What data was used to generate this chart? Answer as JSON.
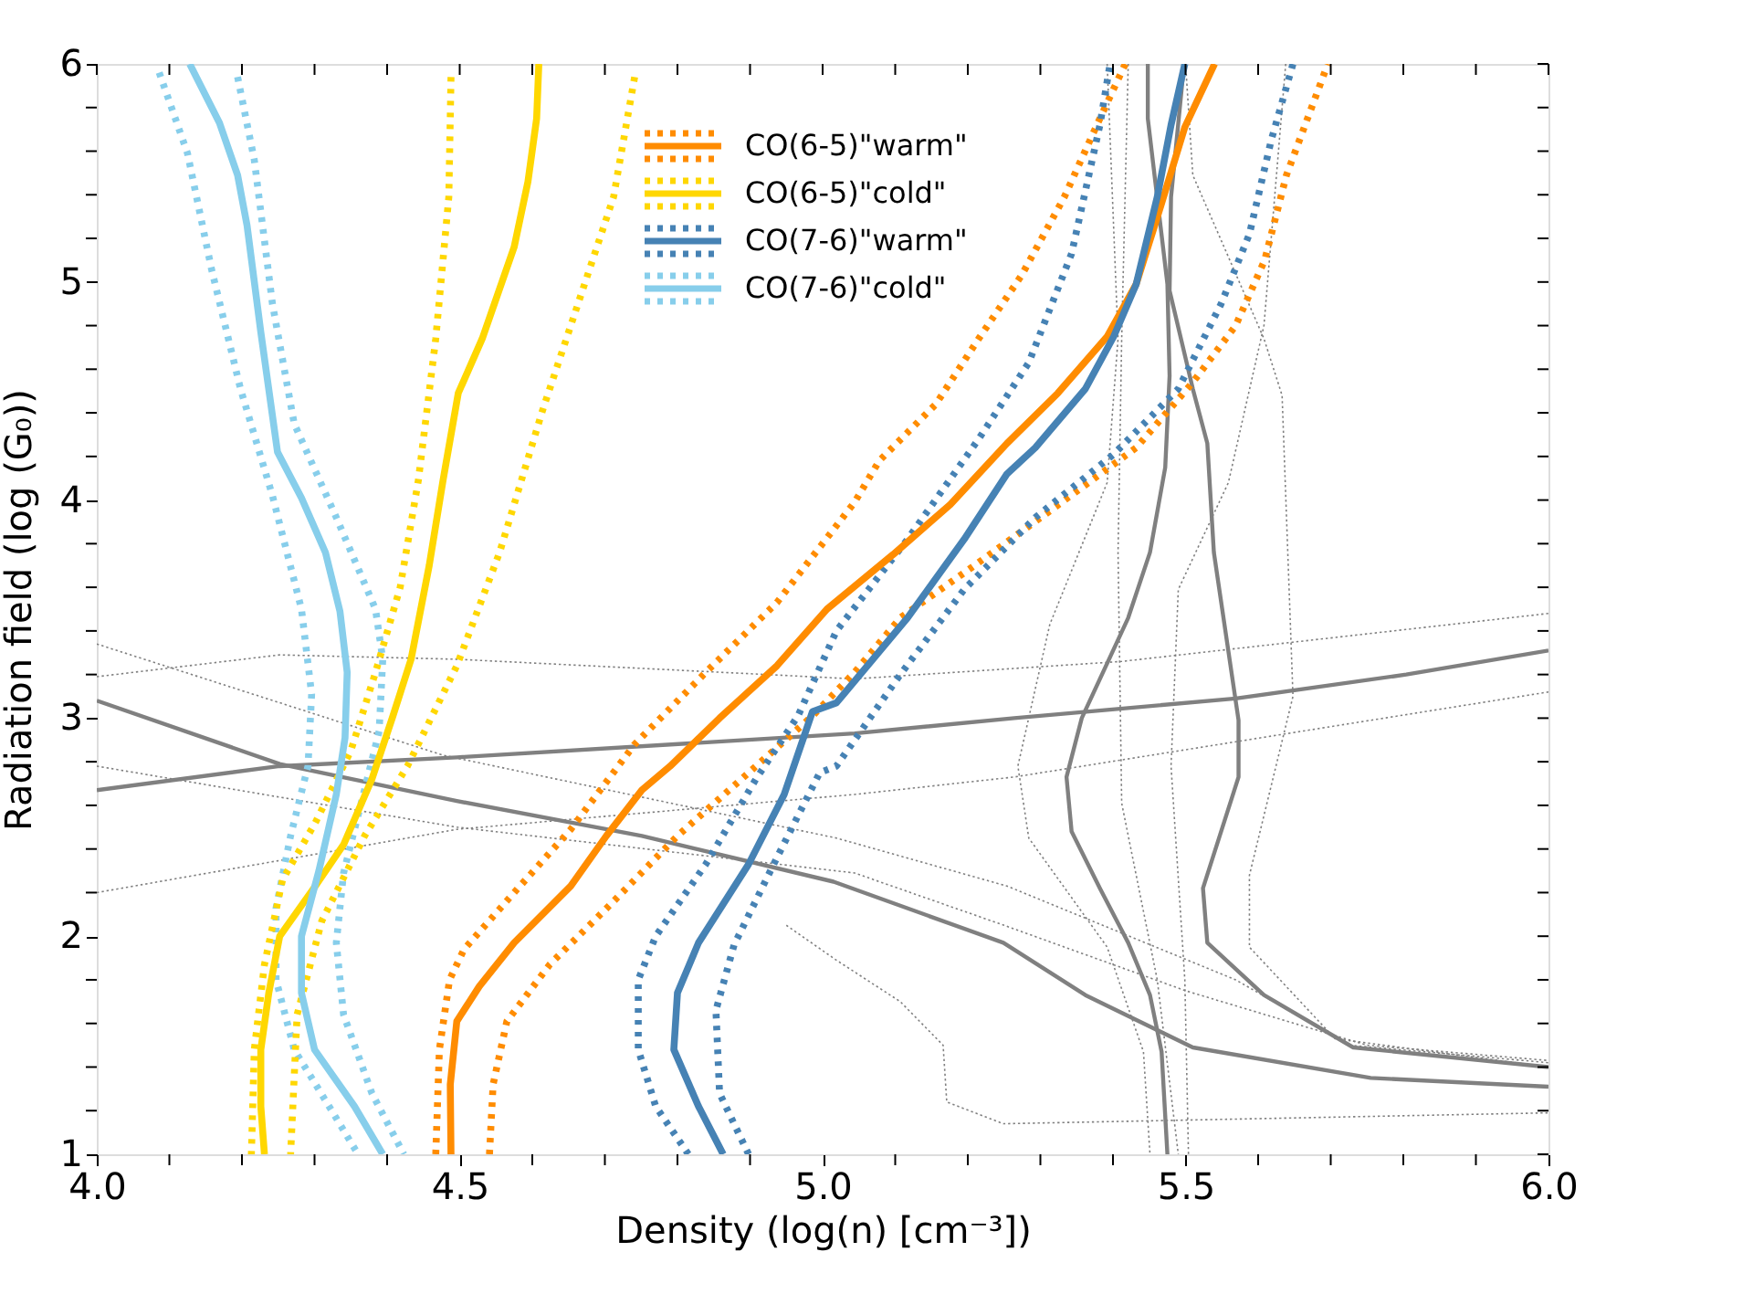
{
  "chart_data": {
    "type": "line",
    "xlabel": "Density (log(n) [cm⁻³])",
    "ylabel": "Radiation field (log (G₀))",
    "xlim": [
      4.0,
      6.0
    ],
    "ylim": [
      1,
      6
    ],
    "xticks": [
      {
        "value": 4.0,
        "label": "4.0"
      },
      {
        "value": 4.1,
        "label": null
      },
      {
        "value": 4.2,
        "label": null
      },
      {
        "value": 4.3,
        "label": null
      },
      {
        "value": 4.4,
        "label": null
      },
      {
        "value": 4.5,
        "label": "4.5"
      },
      {
        "value": 4.6,
        "label": null
      },
      {
        "value": 4.7,
        "label": null
      },
      {
        "value": 4.8,
        "label": null
      },
      {
        "value": 4.9,
        "label": null
      },
      {
        "value": 5.0,
        "label": "5.0"
      },
      {
        "value": 5.1,
        "label": null
      },
      {
        "value": 5.2,
        "label": null
      },
      {
        "value": 5.3,
        "label": null
      },
      {
        "value": 5.4,
        "label": null
      },
      {
        "value": 5.5,
        "label": "5.5"
      },
      {
        "value": 5.6,
        "label": null
      },
      {
        "value": 5.7,
        "label": null
      },
      {
        "value": 5.8,
        "label": null
      },
      {
        "value": 5.9,
        "label": null
      },
      {
        "value": 6.0,
        "label": "6.0"
      }
    ],
    "yticks": [
      1,
      {
        "value": 1.2,
        "label": null
      },
      {
        "value": 1.4,
        "label": null
      },
      {
        "value": 1.6,
        "label": null
      },
      {
        "value": 1.8,
        "label": null
      },
      2,
      {
        "value": 2.2,
        "label": null
      },
      {
        "value": 2.4,
        "label": null
      },
      {
        "value": 2.6,
        "label": null
      },
      {
        "value": 2.8,
        "label": null
      },
      3,
      {
        "value": 3.2,
        "label": null
      },
      {
        "value": 3.4,
        "label": null
      },
      {
        "value": 3.6,
        "label": null
      },
      {
        "value": 3.8,
        "label": null
      },
      4,
      {
        "value": 4.2,
        "label": null
      },
      {
        "value": 4.4,
        "label": null
      },
      {
        "value": 4.6,
        "label": null
      },
      {
        "value": 4.8,
        "label": null
      },
      5,
      {
        "value": 5.2,
        "label": null
      },
      {
        "value": 5.4,
        "label": null
      },
      {
        "value": 5.6,
        "label": null
      },
      {
        "value": 5.8,
        "label": null
      },
      6
    ],
    "grid": false,
    "legend": "top",
    "marker": "none",
    "series": [
      {
        "color": "#808080",
        "line_style": "dotted",
        "x": [
          4.0,
          4.477,
          5.019,
          5.254,
          5.569,
          5.726,
          6.0
        ],
        "values": [
          3.34,
          2.83,
          2.45,
          2.23,
          1.8,
          1.5,
          1.42
        ]
      },
      {
        "color": "#808080",
        "line_style": "dotted",
        "x": [
          4.0,
          4.252,
          4.496,
          5.044,
          5.412,
          6.0
        ],
        "values": [
          3.19,
          3.29,
          3.27,
          3.18,
          3.26,
          3.48
        ]
      },
      {
        "color": "#808080",
        "line_style": "dotted",
        "x": [
          4.0,
          4.496,
          5.044,
          5.25,
          5.5,
          5.75,
          6.0
        ],
        "values": [
          2.78,
          2.5,
          2.29,
          2.05,
          1.75,
          1.5,
          1.43
        ]
      },
      {
        "color": "#808080",
        "line_style": "dotted",
        "x": [
          4.0,
          4.496,
          5.044,
          5.264,
          6.0
        ],
        "values": [
          2.2,
          2.49,
          2.65,
          2.73,
          3.12
        ]
      },
      {
        "color": "#808080",
        "line_style": "dotted",
        "x": [
          4.95,
          5.019,
          5.107,
          5.166,
          5.171,
          5.249,
          6.0
        ],
        "values": [
          2.05,
          1.89,
          1.7,
          1.5,
          1.24,
          1.14,
          1.19
        ]
      },
      {
        "color": "#808080",
        "line_style": "dotted",
        "x": [
          5.392,
          5.407,
          5.392,
          5.313,
          5.269,
          5.284,
          5.392,
          5.442,
          5.451
        ],
        "values": [
          6.0,
          4.74,
          4.08,
          3.43,
          2.78,
          2.45,
          1.95,
          1.47,
          1.0
        ]
      },
      {
        "color": "#808080",
        "line_style": "dotted",
        "x": [
          5.421,
          5.412,
          5.407,
          5.412,
          5.461,
          5.49
        ],
        "values": [
          6.0,
          4.74,
          3.76,
          2.61,
          1.8,
          1.0
        ]
      },
      {
        "color": "#808080",
        "line_style": "dotted",
        "x": [
          5.5,
          5.51,
          5.608,
          5.633,
          5.648,
          5.588,
          5.588,
          5.706,
          6.0
        ],
        "values": [
          6.0,
          5.49,
          4.74,
          4.48,
          3.1,
          2.28,
          1.95,
          1.53,
          1.4
        ]
      },
      {
        "color": "#808080",
        "line_style": "dotted",
        "x": [
          5.638,
          5.608,
          5.559,
          5.49,
          5.48,
          5.499,
          5.504
        ],
        "values": [
          6.0,
          4.8,
          4.08,
          3.59,
          2.78,
          1.8,
          1.0
        ]
      },
      {
        "color": "#808080",
        "line_style": "solid",
        "x": [
          4.0,
          4.252,
          4.496,
          5.044,
          5.264,
          5.569,
          5.804,
          6.0
        ],
        "values": [
          2.67,
          2.78,
          2.82,
          2.93,
          3.0,
          3.09,
          3.2,
          3.31
        ]
      },
      {
        "color": "#808080",
        "line_style": "solid",
        "x": [
          4.0,
          4.252,
          4.496,
          4.751,
          5.015,
          5.249,
          5.362,
          5.51,
          5.755,
          6.0
        ],
        "values": [
          3.08,
          2.79,
          2.62,
          2.46,
          2.25,
          1.97,
          1.73,
          1.49,
          1.35,
          1.31
        ]
      },
      {
        "color": "#808080",
        "line_style": "solid",
        "x": [
          5.448,
          5.448,
          5.475,
          5.478,
          5.472,
          5.451,
          5.421,
          5.357,
          5.336,
          5.343,
          5.382,
          5.421,
          5.451,
          5.467,
          5.475
        ],
        "values": [
          6.0,
          5.75,
          4.99,
          4.57,
          4.15,
          3.76,
          3.46,
          3.0,
          2.73,
          2.48,
          2.22,
          1.97,
          1.73,
          1.47,
          1.0
        ]
      },
      {
        "color": "#808080",
        "line_style": "solid",
        "x": [
          5.498,
          5.48,
          5.478,
          5.51,
          5.53,
          5.539,
          5.573,
          5.573,
          5.524,
          5.53,
          5.608,
          5.731,
          6.0
        ],
        "values": [
          6.0,
          5.39,
          4.96,
          4.51,
          4.26,
          3.76,
          2.99,
          2.73,
          2.22,
          1.97,
          1.73,
          1.49,
          1.4
        ]
      },
      {
        "color": "#87ceeb",
        "line_style": "dotted",
        "x": [
          4.086,
          4.125,
          4.158,
          4.198,
          4.242,
          4.282,
          4.296,
          4.291,
          4.267,
          4.247,
          4.247,
          4.272,
          4.32,
          4.36
        ],
        "values": [
          5.96,
          5.59,
          5.06,
          4.51,
          4.02,
          3.5,
          3.11,
          2.78,
          2.46,
          2.13,
          1.8,
          1.48,
          1.22,
          1.0
        ]
      },
      {
        "color": "#87ceeb",
        "line_style": "dotted",
        "x": [
          4.194,
          4.217,
          4.242,
          4.272,
          4.33,
          4.384,
          4.394,
          4.389,
          4.365,
          4.34,
          4.33,
          4.34,
          4.379,
          4.423
        ],
        "values": [
          5.94,
          5.56,
          4.9,
          4.35,
          3.92,
          3.5,
          3.27,
          2.94,
          2.62,
          2.29,
          1.97,
          1.64,
          1.28,
          1.0
        ]
      },
      {
        "color": "#ffd700",
        "line_style": "dotted",
        "x": [
          4.488,
          4.485,
          4.467,
          4.443,
          4.418,
          4.384,
          4.35,
          4.301,
          4.256,
          4.231,
          4.217,
          4.213
        ],
        "values": [
          5.94,
          5.39,
          4.74,
          4.09,
          3.6,
          3.21,
          2.85,
          2.52,
          2.26,
          1.87,
          1.48,
          1.0
        ]
      },
      {
        "color": "#ffd700",
        "line_style": "dotted",
        "x": [
          4.741,
          4.712,
          4.663,
          4.614,
          4.555,
          4.496,
          4.428,
          4.369,
          4.31,
          4.276,
          4.267
        ],
        "values": [
          5.94,
          5.39,
          4.9,
          4.41,
          3.76,
          3.24,
          2.78,
          2.46,
          2.07,
          1.64,
          1.0
        ]
      },
      {
        "color": "#ff8c00",
        "line_style": "dotted",
        "x": [
          4.467,
          4.472,
          4.486,
          4.506,
          4.575,
          4.653,
          4.741,
          4.839,
          4.937,
          5.044,
          5.078,
          5.156,
          5.215,
          5.274,
          5.333,
          5.382,
          5.417
        ],
        "values": [
          1.0,
          1.48,
          1.8,
          1.94,
          2.2,
          2.49,
          2.88,
          3.21,
          3.53,
          3.99,
          4.18,
          4.44,
          4.74,
          5.03,
          5.39,
          5.75,
          6.0
        ]
      },
      {
        "color": "#ff8c00",
        "line_style": "dotted",
        "x": [
          4.541,
          4.546,
          4.565,
          4.624,
          4.712,
          4.8,
          4.888,
          4.986,
          5.044,
          5.107,
          5.205,
          5.313,
          5.432,
          5.51,
          5.569,
          5.609,
          5.639,
          5.696
        ],
        "values": [
          1.0,
          1.32,
          1.61,
          1.87,
          2.16,
          2.46,
          2.72,
          3.01,
          3.21,
          3.46,
          3.69,
          3.95,
          4.24,
          4.54,
          4.8,
          5.1,
          5.49,
          6.0
        ]
      },
      {
        "color": "#4682b4",
        "line_style": "dotted",
        "x": [
          4.815,
          4.77,
          4.746,
          4.746,
          4.77,
          4.839,
          4.908,
          4.966,
          5.019,
          5.117,
          5.215,
          5.284,
          5.343,
          5.382,
          5.396
        ],
        "values": [
          1.0,
          1.22,
          1.48,
          1.8,
          2.0,
          2.33,
          2.72,
          3.01,
          3.4,
          3.82,
          4.28,
          4.63,
          5.13,
          5.72,
          6.0
        ]
      },
      {
        "color": "#4682b4",
        "line_style": "dotted",
        "x": [
          4.898,
          4.858,
          4.853,
          4.878,
          4.937,
          4.996,
          5.019,
          5.107,
          5.195,
          5.293,
          5.401,
          5.49,
          5.549,
          5.588,
          5.618,
          5.648
        ],
        "values": [
          1.0,
          1.28,
          1.66,
          1.96,
          2.36,
          2.75,
          2.78,
          3.2,
          3.59,
          3.92,
          4.21,
          4.51,
          4.9,
          5.22,
          5.65,
          6.0
        ]
      },
      {
        "name": "CO(6-5)\"warm\"",
        "color": "#ff8c00",
        "line_style": "solid",
        "x": [
          4.488,
          4.487,
          4.496,
          4.527,
          4.575,
          4.653,
          4.702,
          4.751,
          4.79,
          4.858,
          4.937,
          5.006,
          5.097,
          5.176,
          5.254,
          5.324,
          5.392,
          5.432,
          5.466,
          5.499,
          5.54
        ],
        "values": [
          1.0,
          1.32,
          1.61,
          1.77,
          1.97,
          2.23,
          2.46,
          2.67,
          2.78,
          3.0,
          3.24,
          3.5,
          3.75,
          3.98,
          4.26,
          4.49,
          4.75,
          4.99,
          5.35,
          5.71,
          6.0
        ]
      },
      {
        "name": "CO(6-5)\"cold\"",
        "color": "#ffd700",
        "line_style": "solid",
        "x": [
          4.609,
          4.606,
          4.594,
          4.575,
          4.531,
          4.498,
          4.477,
          4.458,
          4.433,
          4.408,
          4.379,
          4.34,
          4.301,
          4.252,
          4.237,
          4.226,
          4.226,
          4.231
        ],
        "values": [
          6.0,
          5.75,
          5.46,
          5.16,
          4.74,
          4.49,
          4.09,
          3.7,
          3.27,
          3.01,
          2.72,
          2.42,
          2.23,
          2.0,
          1.74,
          1.48,
          1.22,
          1.0
        ]
      },
      {
        "name": "CO(7-6)\"warm\"",
        "color": "#4682b4",
        "line_style": "solid",
        "x": [
          4.863,
          4.829,
          4.795,
          4.8,
          4.829,
          4.898,
          4.947,
          4.986,
          5.019,
          5.117,
          5.195,
          5.254,
          5.293,
          5.362,
          5.401,
          5.432,
          5.461,
          5.48,
          5.499
        ],
        "values": [
          1.0,
          1.22,
          1.48,
          1.74,
          1.97,
          2.33,
          2.65,
          3.03,
          3.07,
          3.46,
          3.82,
          4.12,
          4.24,
          4.51,
          4.75,
          4.99,
          5.39,
          5.72,
          6.0
        ]
      },
      {
        "name": "CO(7-6)\"cold\"",
        "color": "#87ceeb",
        "line_style": "solid",
        "x": [
          4.128,
          4.169,
          4.194,
          4.207,
          4.226,
          4.249,
          4.282,
          4.315,
          4.335,
          4.345,
          4.342,
          4.33,
          4.306,
          4.282,
          4.282,
          4.3,
          4.355,
          4.394
        ],
        "values": [
          6.0,
          5.73,
          5.49,
          5.26,
          4.77,
          4.22,
          4.01,
          3.76,
          3.49,
          3.21,
          2.91,
          2.65,
          2.3,
          2.0,
          1.74,
          1.48,
          1.22,
          1.0
        ]
      }
    ]
  }
}
